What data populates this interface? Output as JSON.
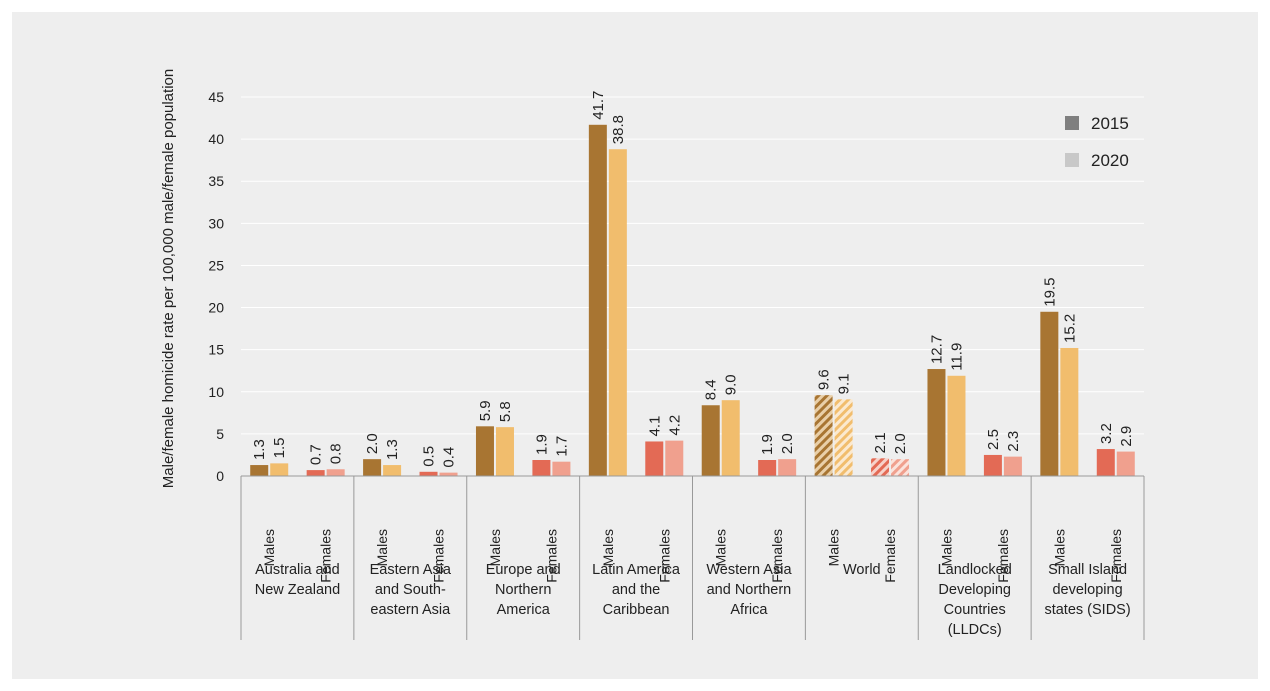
{
  "chart_data": {
    "type": "bar",
    "ylabel": "Male/female homicide rate per 100,000 male/female population",
    "ylim": [
      0,
      45
    ],
    "yticks": [
      0,
      5,
      10,
      15,
      20,
      25,
      30,
      35,
      40,
      45
    ],
    "grid": true,
    "legend_position": "top-right",
    "legend": [
      {
        "name": "2015",
        "color": "#7f7f7f"
      },
      {
        "name": "2020",
        "color": "#c8c8c8"
      }
    ],
    "sexes": [
      "Males",
      "Females"
    ],
    "colors": {
      "males_2015": "#a87532",
      "males_2020": "#f1bd6d",
      "females_2015": "#e36a55",
      "females_2020": "#f0a08e",
      "hatched_group": "World"
    },
    "groups": [
      {
        "label": [
          "Australia and",
          "New Zealand"
        ],
        "males": [
          1.3,
          1.5
        ],
        "females": [
          0.7,
          0.8
        ]
      },
      {
        "label": [
          "Eastern Asia",
          "and South-",
          "eastern Asia"
        ],
        "males": [
          2.0,
          1.3
        ],
        "females": [
          0.5,
          0.4
        ]
      },
      {
        "label": [
          "Europe and",
          "Northern",
          "America"
        ],
        "males": [
          5.9,
          5.8
        ],
        "females": [
          1.9,
          1.7
        ]
      },
      {
        "label": [
          "Latin America",
          "and the",
          "Caribbean"
        ],
        "males": [
          41.7,
          38.8
        ],
        "females": [
          4.1,
          4.2
        ]
      },
      {
        "label": [
          "Western Asia",
          "and Northern",
          "Africa"
        ],
        "males": [
          8.4,
          9.0
        ],
        "females": [
          1.9,
          2.0
        ]
      },
      {
        "label": [
          "World"
        ],
        "males": [
          9.6,
          9.1
        ],
        "females": [
          2.1,
          2.0
        ]
      },
      {
        "label": [
          "Landlocked",
          "Developing",
          "Countries",
          "(LLDCs)"
        ],
        "males": [
          12.7,
          11.9
        ],
        "females": [
          2.5,
          2.3
        ]
      },
      {
        "label": [
          "Small Island",
          "developing",
          "states (SIDS)"
        ],
        "males": [
          19.5,
          15.2
        ],
        "females": [
          3.2,
          2.9
        ]
      }
    ]
  }
}
